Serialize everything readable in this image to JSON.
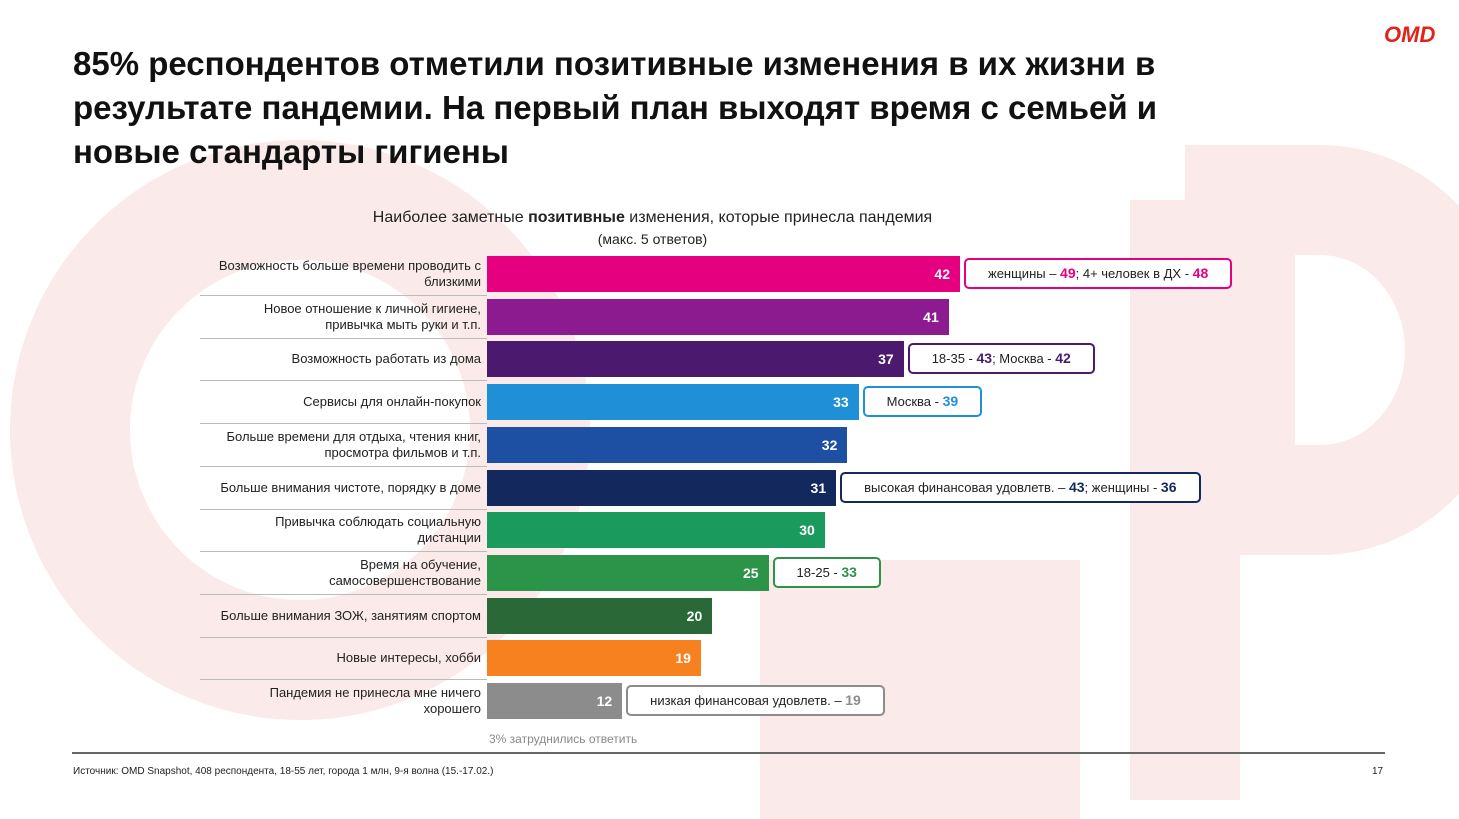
{
  "logo": "OMD",
  "chart_data": {
    "type": "bar",
    "title": "85% респондентов отметили позитивные изменения в их жизни в\nрезультате пандемии. На первый план выходят время с семьей и\nновые стандарты гигиены",
    "subtitle": [
      "Наиболее заметные ",
      "позитивные",
      " изменения, которые принесла пандемия"
    ],
    "subtitle_note": "(макс. 5 ответов)",
    "categories": [
      "Возможность больше времени проводить с\nблизкими",
      "Новое отношение к личной гигиене,\nпривычка мыть руки и т.п.",
      "Возможность работать из дома",
      "Сервисы для онлайн-покупок",
      "Больше времени для отдыха, чтения книг,\nпросмотра фильмов и т.п.",
      "Больше внимания чистоте, порядку в доме",
      "Привычка соблюдать социальную\nдистанции",
      "Время на обучение,\nсамосовершенствование",
      "Больше внимания ЗОЖ, занятиям спортом",
      "Новые интересы, хобби",
      "Пандемия не принесла мне ничего\nхорошего"
    ],
    "values": [
      42,
      41,
      37,
      33,
      32,
      31,
      30,
      25,
      20,
      19,
      12
    ],
    "colors": [
      "#e4007f",
      "#8b1b8f",
      "#4b1a6e",
      "#1f8fd8",
      "#1d4fa2",
      "#13285c",
      "#1a9a5c",
      "#2c9448",
      "#2a6838",
      "#f7811e",
      "#8c8c8c"
    ],
    "annotations": [
      [
        "женщины – ",
        "49",
        "; 4+ человек в ДХ - ",
        "48"
      ],
      null,
      [
        "18-35 - ",
        "43",
        "; Москва - ",
        "42"
      ],
      [
        "Москва - ",
        "39"
      ],
      null,
      [
        "высокая финансовая удовлетв. – ",
        "43",
        "; женщины - ",
        "36"
      ],
      null,
      [
        "18-25 - ",
        "33"
      ],
      null,
      null,
      [
        "низкая финансовая удовлетв. – ",
        "19"
      ]
    ],
    "note": "3% затруднились ответить",
    "source": "Источник: OMD Snapshot, 408 респондента, 18-55 лет, города 1 млн, 9-я волна (15.-17.02.)",
    "page_number": "17"
  }
}
